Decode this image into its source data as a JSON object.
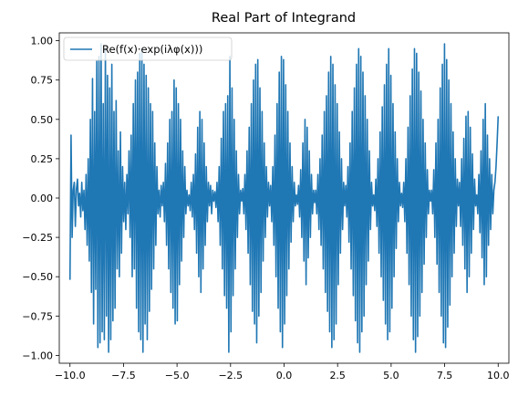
{
  "chart_data": {
    "type": "line",
    "title": "Real Part of Integrand",
    "xlabel": "",
    "ylabel": "",
    "xlim": [
      -10.5,
      10.5
    ],
    "ylim": [
      -1.05,
      1.05
    ],
    "xticks": [
      -10.0,
      -7.5,
      -5.0,
      -2.5,
      0.0,
      2.5,
      5.0,
      7.5,
      10.0
    ],
    "xtick_labels": [
      "−10.0",
      "−7.5",
      "−5.0",
      "−2.5",
      "0.0",
      "2.5",
      "5.0",
      "7.5",
      "10.0"
    ],
    "yticks": [
      -1.0,
      -0.75,
      -0.5,
      -0.25,
      0.0,
      0.25,
      0.5,
      0.75,
      1.0
    ],
    "ytick_labels": [
      "−1.00",
      "−0.75",
      "−0.50",
      "−0.25",
      "0.00",
      "0.25",
      "0.50",
      "0.75",
      "1.00"
    ],
    "grid": false,
    "legend_position": "top-left",
    "series": [
      {
        "name": "Re(f(x)·exp(iλφ(x)))",
        "color": "#1f77b4",
        "x_range": [
          -10.0,
          10.0
        ],
        "num_points": 400,
        "description": "oscillating signal: amplitude envelope peaking near x≈±7.8, ±5, ±2, 0 region low; rapid oscillation",
        "y": [
          -0.52,
          0.4,
          -0.25,
          0.05,
          0.1,
          -0.18,
          0.06,
          0.12,
          -0.05,
          0.03,
          -0.12,
          0.1,
          -0.08,
          0.05,
          -0.2,
          0.15,
          -0.3,
          0.25,
          -0.4,
          0.5,
          -0.6,
          0.76,
          -0.8,
          0.55,
          -0.58,
          0.87,
          -0.95,
          0.9,
          -0.92,
          0.98,
          -0.85,
          0.6,
          -0.9,
          0.95,
          -0.75,
          0.78,
          -0.98,
          0.7,
          -0.9,
          0.85,
          -0.78,
          0.55,
          -0.7,
          0.62,
          -0.45,
          0.3,
          -0.5,
          0.42,
          -0.35,
          0.2,
          -0.15,
          0.1,
          -0.2,
          0.15,
          -0.1,
          0.3,
          -0.25,
          0.4,
          -0.5,
          0.6,
          -0.45,
          0.75,
          -0.7,
          0.8,
          -0.85,
          0.92,
          -0.9,
          0.95,
          -0.98,
          0.85,
          -0.8,
          0.78,
          -0.9,
          0.7,
          -0.72,
          0.6,
          -0.58,
          0.55,
          -0.45,
          0.35,
          -0.3,
          0.2,
          -0.1,
          0.05,
          -0.12,
          0.08,
          -0.05,
          0.1,
          -0.15,
          0.22,
          -0.3,
          0.35,
          -0.45,
          0.5,
          -0.6,
          0.55,
          -0.7,
          0.75,
          -0.8,
          0.7,
          -0.78,
          0.6,
          -0.55,
          0.5,
          -0.4,
          0.3,
          -0.25,
          0.2,
          -0.1,
          0.05,
          -0.05,
          0.02,
          -0.08,
          0.1,
          -0.12,
          0.15,
          -0.2,
          0.28,
          -0.35,
          0.45,
          -0.5,
          0.55,
          -0.6,
          0.5,
          -0.45,
          0.35,
          -0.3,
          0.2,
          -0.15,
          0.1,
          -0.05,
          0.08,
          -0.1,
          0.05,
          -0.02,
          0.04,
          -0.06,
          0.1,
          -0.15,
          0.2,
          -0.3,
          0.38,
          -0.45,
          0.55,
          -0.62,
          0.6,
          -0.7,
          0.65,
          -0.98,
          0.9,
          -0.85,
          0.7,
          -0.62,
          0.5,
          -0.45,
          0.3,
          -0.25,
          0.15,
          -0.1,
          0.05,
          -0.02,
          0.06,
          -0.1,
          0.15,
          -0.2,
          0.3,
          -0.35,
          0.45,
          -0.55,
          0.6,
          -0.72,
          0.75,
          -0.8,
          0.85,
          -0.92,
          0.88,
          -0.75,
          0.7,
          -0.6,
          0.55,
          -0.4,
          0.35,
          -0.25,
          0.2,
          -0.12,
          0.1,
          -0.05,
          0.08,
          -0.15,
          0.2,
          -0.3,
          0.4,
          -0.5,
          0.6,
          -0.7,
          0.8,
          -0.85,
          0.9,
          -0.95,
          0.88,
          -0.8,
          0.72,
          -0.62,
          0.55,
          -0.45,
          0.35,
          -0.28,
          0.2,
          -0.15,
          0.1,
          -0.05,
          0.02,
          -0.04,
          0.08,
          -0.12,
          0.18,
          -0.25,
          0.35,
          -0.4,
          0.5,
          -0.55,
          0.45,
          -0.38,
          0.3,
          -0.25,
          0.15,
          -0.1,
          0.05,
          -0.03,
          0.05,
          -0.1,
          0.15,
          -0.2,
          0.25,
          -0.3,
          0.4,
          -0.45,
          0.55,
          -0.6,
          0.65,
          -0.72,
          0.8,
          -0.85,
          0.9,
          -0.95,
          0.85,
          -0.9,
          0.72,
          -0.8,
          0.6,
          -0.55,
          0.42,
          -0.35,
          0.25,
          -0.2,
          0.1,
          -0.05,
          0.08,
          -0.12,
          0.2,
          -0.28,
          0.35,
          -0.45,
          0.55,
          -0.62,
          0.7,
          -0.78,
          0.85,
          -0.92,
          0.95,
          -0.98,
          0.9,
          -0.85,
          0.8,
          -0.75,
          0.65,
          -0.55,
          0.5,
          -0.4,
          0.3,
          -0.2,
          0.1,
          -0.05,
          0.02,
          -0.08,
          0.12,
          -0.18,
          0.25,
          -0.35,
          0.42,
          -0.5,
          0.58,
          -0.65,
          0.72,
          -0.8,
          0.85,
          -0.9,
          0.95,
          -0.85,
          0.78,
          -0.7,
          0.6,
          -0.5,
          0.42,
          -0.32,
          0.25,
          -0.15,
          0.1,
          -0.05,
          0.03,
          -0.06,
          0.1,
          -0.15,
          0.25,
          -0.35,
          0.45,
          -0.55,
          0.65,
          -0.75,
          0.82,
          -0.9,
          0.95,
          -0.98,
          0.92,
          -0.88,
          0.8,
          -0.75,
          0.68,
          -0.6,
          0.5,
          -0.42,
          0.35,
          -0.25,
          0.18,
          -0.1,
          0.05,
          -0.02,
          0.05,
          -0.1,
          0.18,
          -0.25,
          0.35,
          -0.42,
          0.5,
          -0.6,
          0.7,
          -0.75,
          0.85,
          -0.92,
          0.98,
          -0.95,
          0.88,
          -0.82,
          0.75,
          -0.68,
          0.6,
          -0.5,
          0.42,
          -0.35,
          0.25,
          -0.18,
          0.12,
          -0.05,
          0.1,
          -0.18,
          0.25,
          -0.3,
          0.38,
          -0.45,
          0.52,
          -0.6,
          0.55,
          -0.5,
          0.45,
          -0.35,
          0.28,
          -0.2,
          0.12,
          -0.05,
          0.02,
          -0.1,
          0.15,
          -0.22,
          0.3,
          -0.38,
          0.5,
          -0.55,
          0.6,
          -0.5,
          0.4,
          -0.3,
          0.25,
          -0.2,
          0.15,
          -0.1,
          0.05,
          0.1,
          0.2,
          0.35,
          0.52
        ]
      }
    ]
  }
}
